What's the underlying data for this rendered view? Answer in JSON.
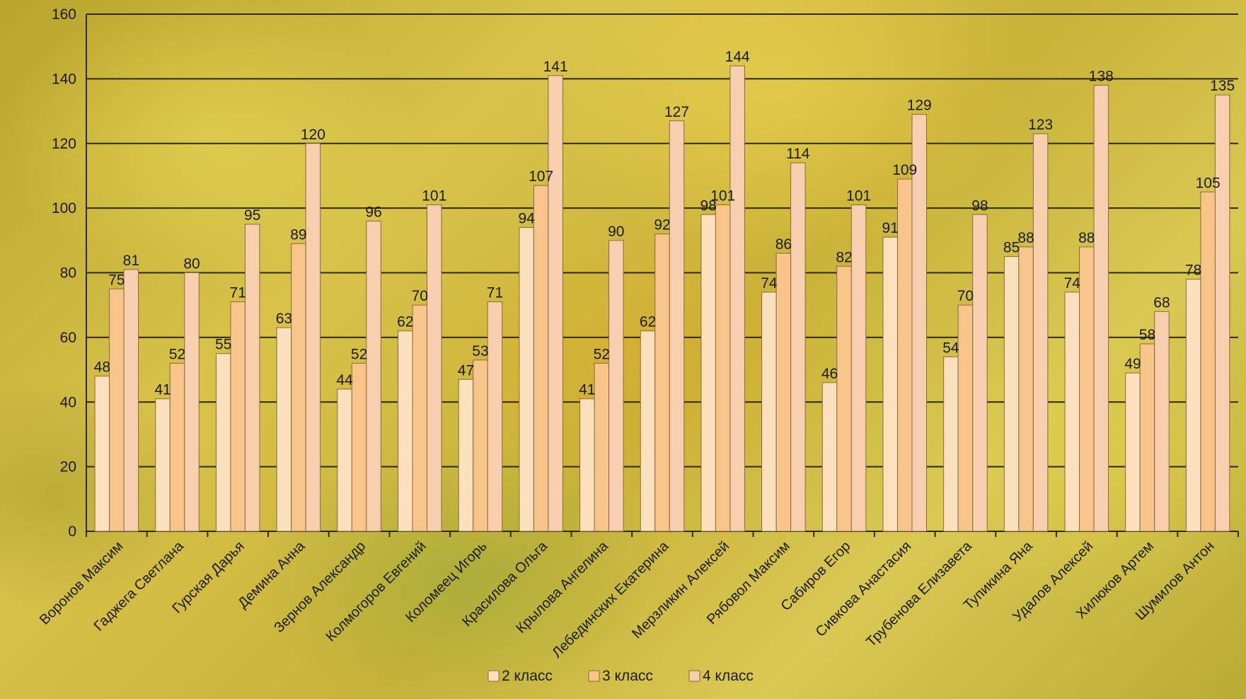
{
  "chart_data": {
    "type": "bar",
    "categories": [
      "Воронов Максим",
      "Гаджега Светлана",
      "Гурская Дарья",
      "Демина Анна",
      "Зернов Александр",
      "Колмогоров Евгений",
      "Коломеец Игорь",
      "Красилова Ольга",
      "Крылова Ангелина",
      "Лебединских Екатерина",
      "Мерзликин Алексей",
      "Рябовол Максим",
      "Сабиров Егор",
      "Сивкова Анастасия",
      "Трубенова Елизавета",
      "Тупикина Яна",
      "Удалов Алексей",
      "Хилюков Артем",
      "Шумилов Антон"
    ],
    "series": [
      {
        "name": "2 класс",
        "color": "#fbe0bd",
        "values": [
          48,
          41,
          55,
          63,
          44,
          62,
          47,
          94,
          41,
          62,
          98,
          74,
          46,
          91,
          54,
          85,
          74,
          49,
          78
        ]
      },
      {
        "name": "3 класс",
        "color": "#f7c489",
        "values": [
          75,
          52,
          71,
          89,
          52,
          70,
          53,
          107,
          52,
          92,
          101,
          86,
          82,
          109,
          70,
          88,
          88,
          58,
          105
        ]
      },
      {
        "name": "4 класс",
        "color": "#f7cfaf",
        "values": [
          81,
          80,
          95,
          120,
          96,
          101,
          71,
          141,
          90,
          127,
          144,
          114,
          101,
          129,
          98,
          123,
          138,
          68,
          135
        ]
      }
    ],
    "y_ticks": [
      "0",
      "20",
      "40",
      "60",
      "80",
      "100",
      "120",
      "140",
      "160"
    ],
    "ylim": [
      0,
      160
    ],
    "grid": true,
    "legend_position": "bottom"
  }
}
